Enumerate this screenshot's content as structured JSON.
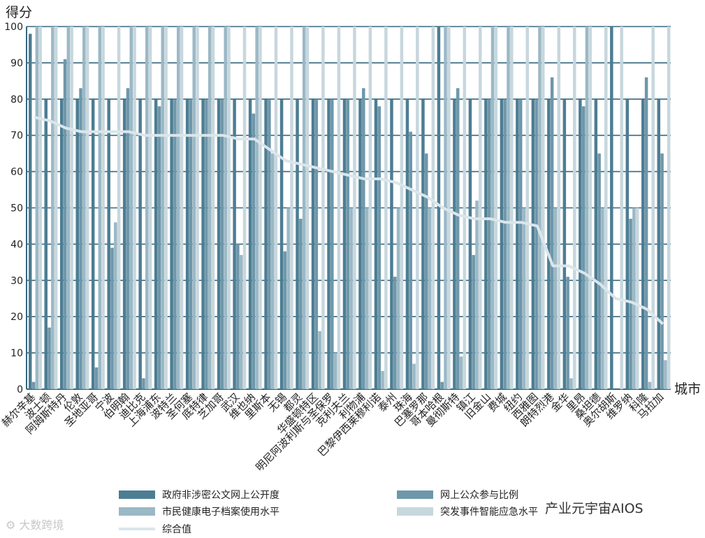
{
  "chart_data": {
    "type": "bar",
    "ylabel": "得分",
    "xlabel": "城市",
    "ylim": [
      0,
      100
    ],
    "yticks": [
      0,
      10,
      20,
      30,
      40,
      50,
      60,
      70,
      80,
      90,
      100
    ],
    "grid": true,
    "legend_position": "bottom",
    "categories": [
      "赫尔辛基",
      "波士顿",
      "阿姆斯特丹",
      "伦敦",
      "圣地亚哥",
      "宁波",
      "伯明翰",
      "迪比克",
      "上海浦东",
      "波特兰",
      "圣何塞",
      "底特律",
      "芝加哥",
      "武汉",
      "维也纳",
      "里斯本",
      "无锡",
      "都灵",
      "华盛顿特区",
      "明尼阿波利斯与圣保罗",
      "克利夫兰",
      "利物浦",
      "巴黎伊西莱穆利诺",
      "泰州",
      "珠海",
      "巴塞罗那",
      "哥本哈根",
      "曼彻斯特",
      "镇江",
      "旧金山",
      "费城",
      "纽约",
      "西雅图",
      "朗特烈港",
      "金华",
      "里昂",
      "桑坦德",
      "奥尔胡斯",
      "维罗纳",
      "科隆",
      "马拉加"
    ],
    "series": [
      {
        "name": "政府非涉密公文网上公开度",
        "color": "#4d7d93",
        "values": [
          98,
          80,
          80,
          80,
          80,
          80,
          80,
          80,
          80,
          80,
          80,
          80,
          80,
          80,
          80,
          80,
          80,
          80,
          80,
          80,
          80,
          80,
          80,
          80,
          80,
          80,
          100,
          80,
          80,
          80,
          80,
          80,
          80,
          80,
          80,
          80,
          80,
          100,
          80,
          80,
          80
        ]
      },
      {
        "name": "网上公众参与比例",
        "color": "#6e97aa",
        "values": [
          2,
          17,
          91,
          83,
          6,
          39,
          83,
          3,
          78,
          80,
          80,
          80,
          80,
          40,
          76,
          80,
          38,
          47,
          80,
          80,
          80,
          83,
          78,
          31,
          71,
          65,
          2,
          83,
          37,
          80,
          80,
          80,
          80,
          86,
          31,
          78,
          65,
          0,
          47,
          86,
          65
        ]
      },
      {
        "name": "市民健康电子档案使用水平",
        "color": "#9bb8c5",
        "values": [
          100,
          100,
          100,
          100,
          100,
          46,
          100,
          100,
          100,
          100,
          100,
          100,
          100,
          37,
          100,
          65,
          50,
          100,
          16,
          10,
          50,
          50,
          5,
          50,
          7,
          50,
          100,
          9,
          52,
          100,
          100,
          50,
          100,
          50,
          3,
          100,
          50,
          0,
          50,
          2,
          8
        ]
      },
      {
        "name": "突发事件智能应急水平",
        "color": "#c7d7de",
        "values": [
          100,
          100,
          100,
          100,
          100,
          100,
          100,
          100,
          100,
          100,
          100,
          100,
          100,
          100,
          100,
          100,
          100,
          100,
          100,
          100,
          100,
          100,
          100,
          100,
          100,
          100,
          100,
          100,
          100,
          100,
          100,
          100,
          100,
          100,
          100,
          100,
          100,
          100,
          50,
          100,
          100
        ]
      }
    ],
    "composite": {
      "name": "综合值",
      "color": "#dbe6eb",
      "values": [
        75,
        74,
        72,
        71,
        71,
        71,
        71,
        70,
        70,
        70,
        70,
        70,
        70,
        69,
        69,
        66,
        63,
        62,
        61,
        60,
        59,
        58,
        58,
        57,
        55,
        53,
        50,
        48,
        47,
        47,
        46,
        46,
        45,
        34,
        34,
        32,
        29,
        25,
        24,
        22,
        18
      ]
    }
  },
  "watermarks": {
    "left": "⚙ 大数跨境",
    "right": "产业元宇宙AIOS"
  }
}
